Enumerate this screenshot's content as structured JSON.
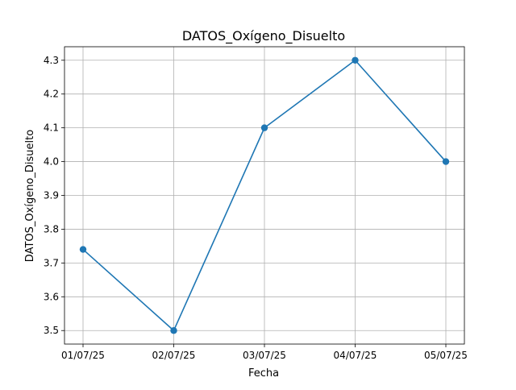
{
  "chart_data": {
    "type": "line",
    "title": "DATOS_Oxígeno_Disuelto",
    "xlabel": "Fecha",
    "ylabel": "DATOS_Oxígeno_Disuelto",
    "categories": [
      "01/07/25",
      "02/07/25",
      "03/07/25",
      "04/07/25",
      "05/07/25"
    ],
    "series": [
      {
        "values": [
          3.74,
          3.5,
          4.1,
          4.3,
          4.0
        ],
        "color": "#1f77b4",
        "marker": "circle"
      }
    ],
    "yticks": [
      "3.5",
      "3.6",
      "3.7",
      "3.8",
      "3.9",
      "4.0",
      "4.1",
      "4.2",
      "4.3"
    ],
    "ylim": [
      3.46,
      4.34
    ],
    "grid": true,
    "legend": "none"
  }
}
